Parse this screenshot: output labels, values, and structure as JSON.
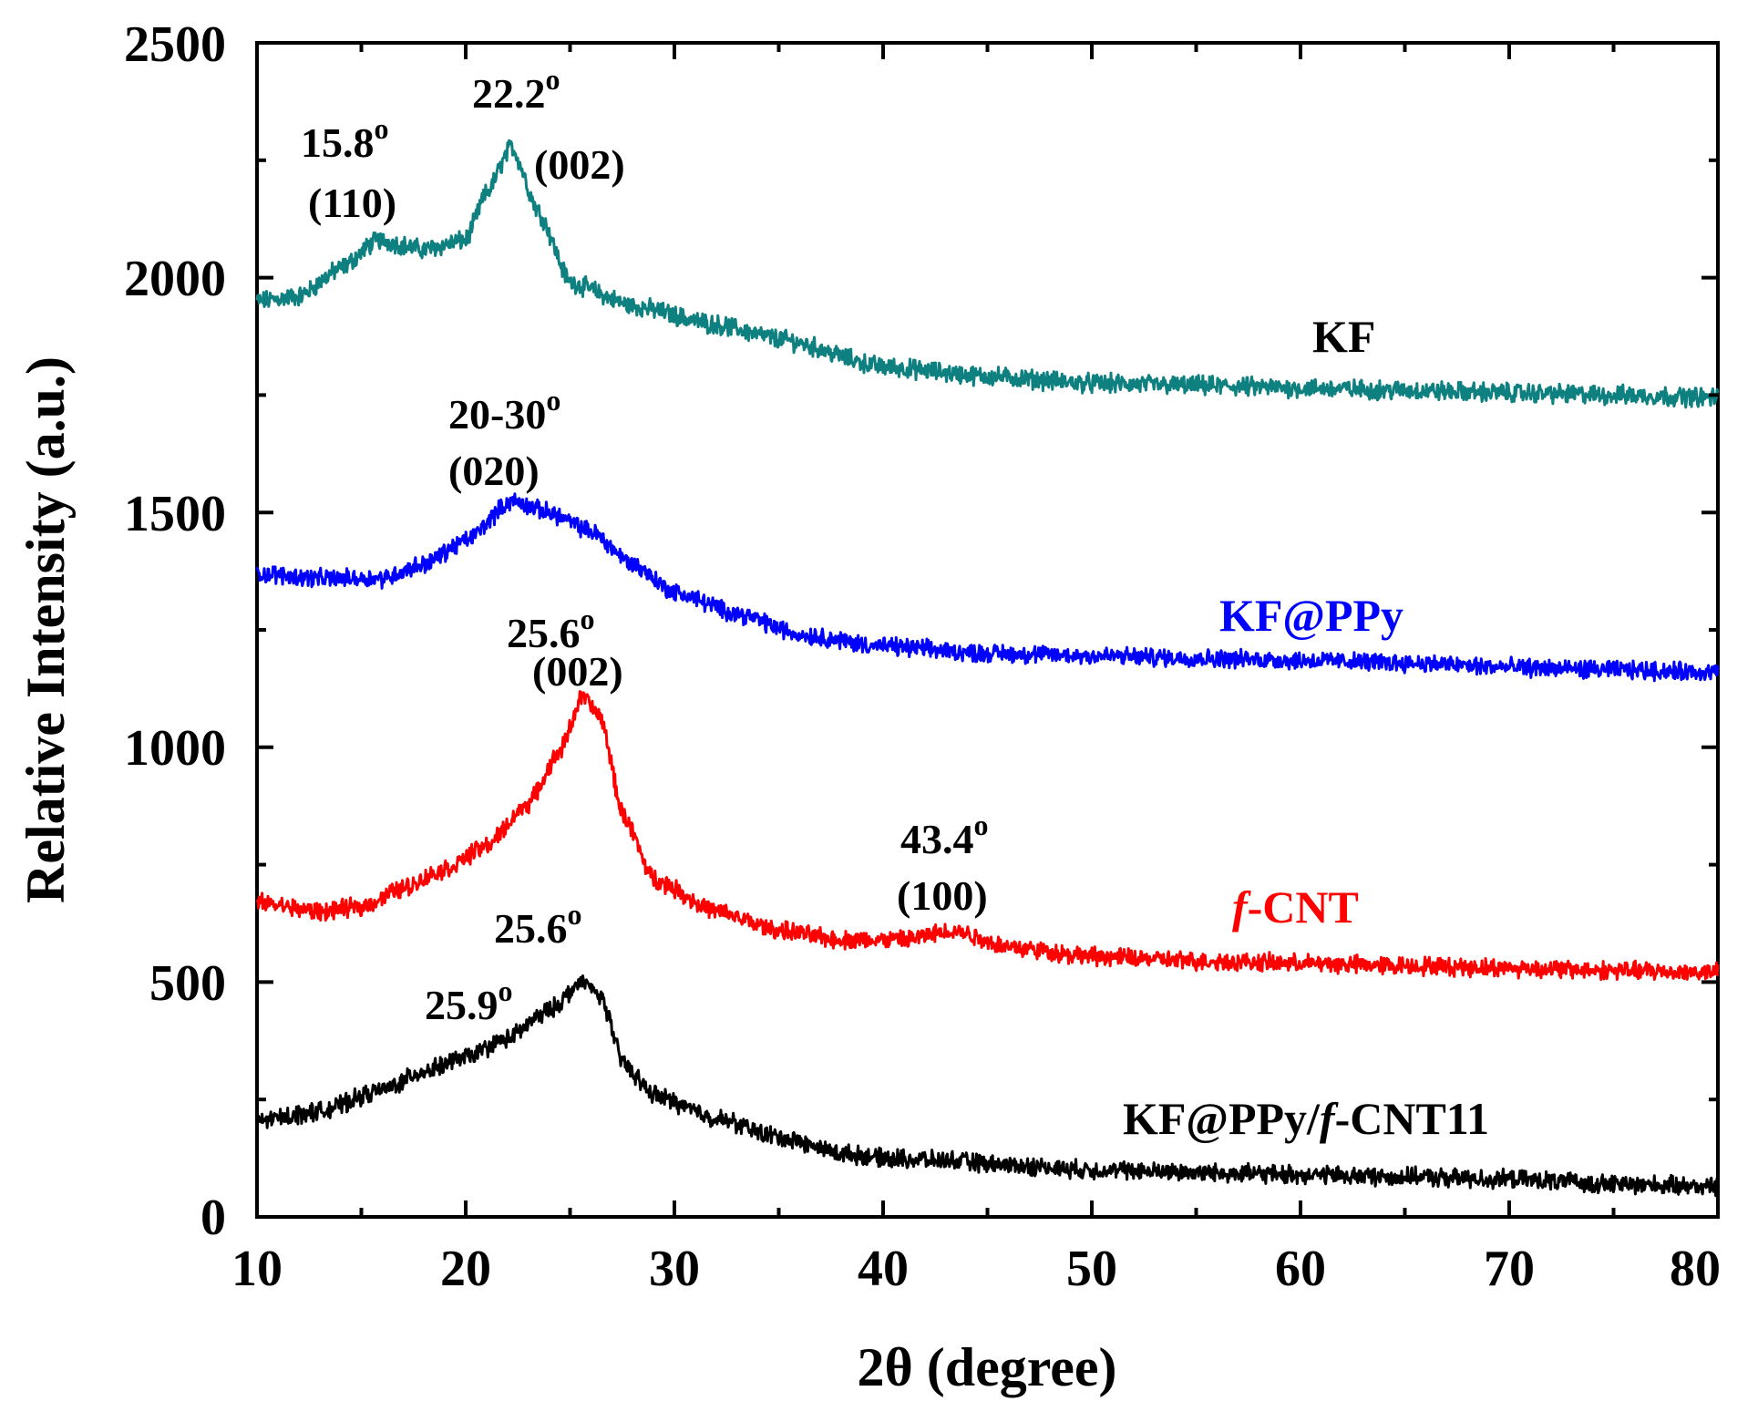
{
  "chart_data": {
    "type": "line",
    "title": "",
    "xlabel": "2θ (degree)",
    "ylabel": "Relative Intensity (a.u.)",
    "xlim": [
      10,
      80
    ],
    "ylim": [
      0,
      2500
    ],
    "xticks": [
      10,
      20,
      30,
      40,
      50,
      60,
      70,
      80
    ],
    "yticks": [
      0,
      500,
      1000,
      1500,
      2000,
      2500
    ],
    "xtick_labels": [
      "10",
      "20",
      "30",
      "40",
      "50",
      "60",
      "70",
      "80"
    ],
    "ytick_labels": [
      "0",
      "500",
      "1000",
      "1500",
      "2000",
      "2500"
    ],
    "series": [
      {
        "name": "KF",
        "label_text": "KF",
        "color": "#0f8080",
        "baseline": [
          [
            10,
            1950
          ],
          [
            12,
            1960
          ],
          [
            14,
            2020
          ],
          [
            15.8,
            2080
          ],
          [
            18,
            2060
          ],
          [
            20,
            2080
          ],
          [
            21,
            2180
          ],
          [
            22.2,
            2280
          ],
          [
            23.5,
            2140
          ],
          [
            25,
            1990
          ],
          [
            28,
            1940
          ],
          [
            32,
            1900
          ],
          [
            35,
            1870
          ],
          [
            40,
            1810
          ],
          [
            45,
            1790
          ],
          [
            50,
            1775
          ],
          [
            55,
            1770
          ],
          [
            60,
            1765
          ],
          [
            65,
            1760
          ],
          [
            70,
            1755
          ],
          [
            75,
            1750
          ],
          [
            80,
            1745
          ]
        ],
        "noise": 16
      },
      {
        "name": "KF@PPy",
        "label_text": "KF@PPy",
        "color": "#0000ff",
        "baseline": [
          [
            10,
            1370
          ],
          [
            13,
            1360
          ],
          [
            16,
            1360
          ],
          [
            18,
            1390
          ],
          [
            20,
            1440
          ],
          [
            22.2,
            1525
          ],
          [
            24,
            1500
          ],
          [
            26,
            1460
          ],
          [
            28,
            1390
          ],
          [
            30,
            1330
          ],
          [
            33,
            1285
          ],
          [
            36,
            1240
          ],
          [
            40,
            1215
          ],
          [
            45,
            1200
          ],
          [
            50,
            1195
          ],
          [
            55,
            1190
          ],
          [
            60,
            1185
          ],
          [
            65,
            1180
          ],
          [
            70,
            1170
          ],
          [
            75,
            1165
          ],
          [
            80,
            1160
          ]
        ],
        "noise": 15
      },
      {
        "name": "f-CNT",
        "label_prefix": "f",
        "label_suffix": "-CNT",
        "color": "#ff0000",
        "baseline": [
          [
            10,
            670
          ],
          [
            13,
            650
          ],
          [
            15,
            660
          ],
          [
            17,
            700
          ],
          [
            19,
            740
          ],
          [
            21,
            790
          ],
          [
            23,
            880
          ],
          [
            24.5,
            990
          ],
          [
            25.6,
            1110
          ],
          [
            26.5,
            1060
          ],
          [
            27.5,
            860
          ],
          [
            29,
            720
          ],
          [
            32,
            650
          ],
          [
            35,
            610
          ],
          [
            38,
            590
          ],
          [
            41,
            590
          ],
          [
            43.4,
            610
          ],
          [
            46,
            575
          ],
          [
            50,
            555
          ],
          [
            55,
            545
          ],
          [
            60,
            540
          ],
          [
            65,
            535
          ],
          [
            70,
            530
          ],
          [
            75,
            525
          ],
          [
            80,
            520
          ]
        ],
        "noise": 15
      },
      {
        "name": "KF@PPy/f-CNT11",
        "label_part1": "KF@PPy/",
        "label_part2": "f",
        "label_part3": "-CNT11",
        "color": "#000000",
        "baseline": [
          [
            10,
            205
          ],
          [
            13,
            225
          ],
          [
            16,
            270
          ],
          [
            18,
            310
          ],
          [
            20,
            340
          ],
          [
            22,
            380
          ],
          [
            24,
            440
          ],
          [
            25.6,
            500
          ],
          [
            26.5,
            470
          ],
          [
            27.5,
            330
          ],
          [
            29,
            260
          ],
          [
            32,
            210
          ],
          [
            35,
            170
          ],
          [
            38,
            135
          ],
          [
            40,
            125
          ],
          [
            43,
            120
          ],
          [
            46,
            110
          ],
          [
            50,
            100
          ],
          [
            55,
            95
          ],
          [
            60,
            90
          ],
          [
            65,
            85
          ],
          [
            70,
            80
          ],
          [
            75,
            70
          ],
          [
            80,
            65
          ]
        ],
        "noise": 15
      }
    ],
    "annotations": [
      {
        "line1": "15.8",
        "sup": "o",
        "line2": "(110)",
        "x": 15.8,
        "y": 2080
      },
      {
        "line1": "22.2",
        "sup": "o",
        "line2": "(002)",
        "x": 22.2,
        "y": 2280
      },
      {
        "line1": "20-30",
        "sup": "o",
        "line2": "(020)",
        "x": 22.2,
        "y": 1525
      },
      {
        "line1": "25.6",
        "sup": "o",
        "line2": "(002)",
        "x": 25.6,
        "y": 1110
      },
      {
        "line1": "43.4",
        "sup": "o",
        "line2": "(100)",
        "x": 43.4,
        "y": 610
      },
      {
        "line1": "25.6",
        "sup": "o",
        "line2": "",
        "x": 25.6,
        "y": 500
      },
      {
        "line1": "25.9",
        "sup": "o",
        "line2": "",
        "x": 25.9,
        "y": 420
      }
    ]
  }
}
